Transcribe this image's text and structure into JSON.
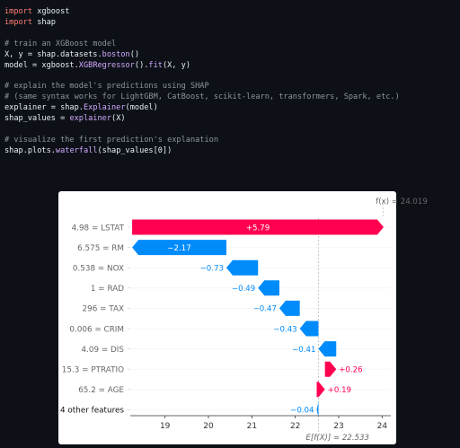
{
  "code_lines": [
    [
      {
        "t": "import",
        "c": "kw"
      },
      {
        "t": " xgboost",
        "c": "var"
      }
    ],
    [
      {
        "t": "import",
        "c": "kw"
      },
      {
        "t": " shap",
        "c": "var"
      }
    ],
    [],
    [
      {
        "t": "# train an XGBoost model",
        "c": "cm"
      }
    ],
    [
      {
        "t": "X, y = shap.datasets.",
        "c": "var"
      },
      {
        "t": "boston",
        "c": "fn"
      },
      {
        "t": "()",
        "c": "var"
      }
    ],
    [
      {
        "t": "model = xgboost.",
        "c": "var"
      },
      {
        "t": "XGBRegressor",
        "c": "fn"
      },
      {
        "t": "().",
        "c": "var"
      },
      {
        "t": "fit",
        "c": "fn"
      },
      {
        "t": "(X, y)",
        "c": "var"
      }
    ],
    [],
    [
      {
        "t": "# explain the model's predictions using SHAP",
        "c": "cm"
      }
    ],
    [
      {
        "t": "# (same syntax works for LightGBM, CatBoost, scikit-learn, transformers, Spark, etc.)",
        "c": "cm"
      }
    ],
    [
      {
        "t": "explainer = shap.",
        "c": "var"
      },
      {
        "t": "Explainer",
        "c": "fn"
      },
      {
        "t": "(model)",
        "c": "var"
      }
    ],
    [
      {
        "t": "shap_values = ",
        "c": "var"
      },
      {
        "t": "explainer",
        "c": "fn"
      },
      {
        "t": "(X)",
        "c": "var"
      }
    ],
    [],
    [
      {
        "t": "# visualize the first prediction's explanation",
        "c": "cm"
      }
    ],
    [
      {
        "t": "shap.plots.",
        "c": "var"
      },
      {
        "t": "waterfall",
        "c": "fn"
      },
      {
        "t": "(shap_values[0])",
        "c": "var"
      }
    ]
  ],
  "chart_data": {
    "type": "waterfall",
    "base_value_label": "E[f(X)] = 22.533",
    "base_value": 22.533,
    "output_value_label": "f(x) = 24.019",
    "output_value": 24.019,
    "xlim": [
      18.2,
      24.2
    ],
    "xticks": [
      19,
      20,
      21,
      22,
      23,
      24
    ],
    "features": [
      {
        "label": "4.98 = LSTAT",
        "value": 5.79,
        "text": "+5.79"
      },
      {
        "label": "6.575 = RM",
        "value": -2.17,
        "text": "−2.17"
      },
      {
        "label": "0.538 = NOX",
        "value": -0.73,
        "text": "−0.73"
      },
      {
        "label": "1 = RAD",
        "value": -0.49,
        "text": "−0.49"
      },
      {
        "label": "296 = TAX",
        "value": -0.47,
        "text": "−0.47"
      },
      {
        "label": "0.006 = CRIM",
        "value": -0.43,
        "text": "−0.43"
      },
      {
        "label": "4.09 = DIS",
        "value": -0.41,
        "text": "−0.41"
      },
      {
        "label": "15.3 = PTRATIO",
        "value": 0.26,
        "text": "+0.26"
      },
      {
        "label": "65.2 = AGE",
        "value": 0.19,
        "text": "+0.19"
      },
      {
        "label": "4 other features",
        "value": -0.04,
        "text": "−0.04"
      }
    ],
    "colors": {
      "positive": "#ff0051",
      "negative": "#008bfb",
      "label": "#666666",
      "axis": "#333333"
    }
  }
}
